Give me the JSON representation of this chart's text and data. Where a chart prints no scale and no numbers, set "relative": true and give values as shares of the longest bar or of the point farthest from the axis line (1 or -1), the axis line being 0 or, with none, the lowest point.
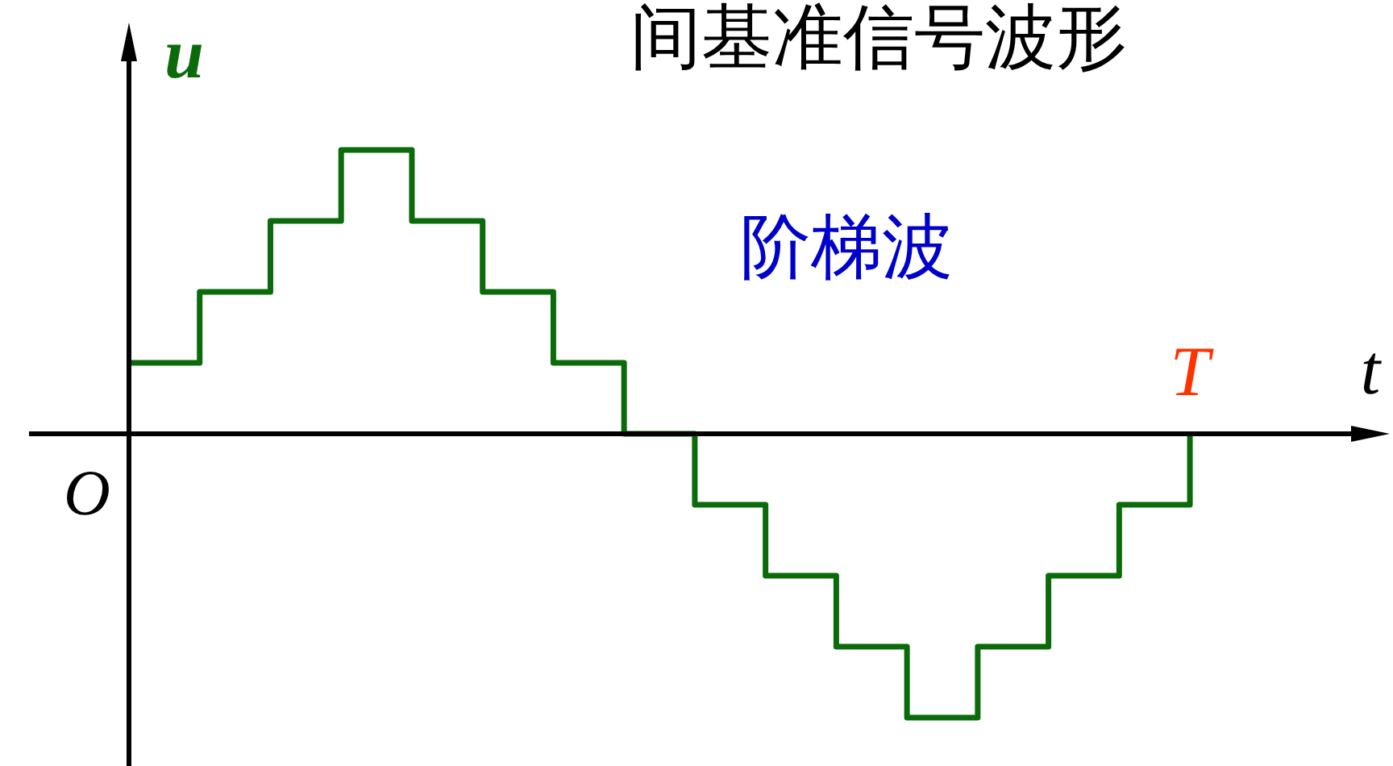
{
  "chart_data": {
    "type": "step",
    "title": "间基准信号波形",
    "xlabel": "t",
    "ylabel": "u",
    "relative": true,
    "categories": [
      null,
      null,
      null,
      null,
      null,
      null,
      null,
      null,
      null,
      null,
      null,
      null,
      null,
      null,
      null,
      null
    ],
    "series": [
      {
        "color": "#0b6b0b",
        "values": [
          0.25,
          0.5,
          0.75,
          1,
          0.75,
          0.5,
          0.25,
          0,
          -0.25,
          -0.5,
          -0.75,
          -1,
          -0.75,
          -0.5,
          -0.25,
          0
        ]
      }
    ],
    "annotations": [
      "阶梯波",
      "O",
      "T"
    ],
    "grid": false,
    "legend": false,
    "marker": "none",
    "line_style": "solid"
  }
}
